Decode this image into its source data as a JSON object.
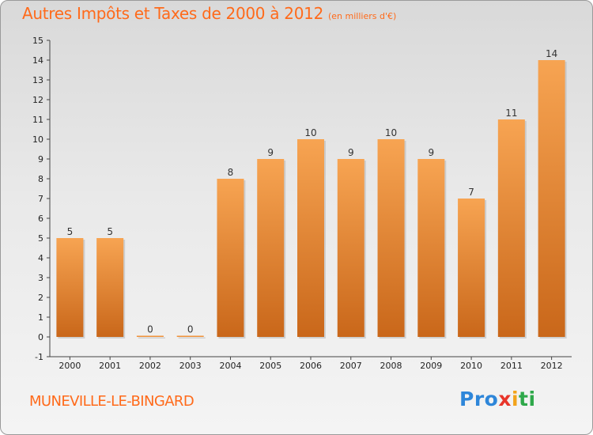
{
  "chart_data": {
    "type": "bar",
    "title": "Autres Impôts et Taxes de 2000 à 2012",
    "unit": "(en milliers d'€)",
    "categories": [
      "2000",
      "2001",
      "2002",
      "2003",
      "2004",
      "2005",
      "2006",
      "2007",
      "2008",
      "2009",
      "2010",
      "2011",
      "2012"
    ],
    "values": [
      5,
      5,
      0,
      0,
      8,
      9,
      10,
      9,
      10,
      9,
      7,
      11,
      14
    ],
    "ylim": [
      -1,
      15
    ],
    "yticks": [
      -1,
      0,
      1,
      2,
      3,
      4,
      5,
      6,
      7,
      8,
      9,
      10,
      11,
      12,
      13,
      14,
      15
    ],
    "grid": false,
    "bar_color": "#f0923a"
  },
  "commune": "MUNEVILLE-LE-BINGARD",
  "logo": {
    "p1": "Pro",
    "p2": "x",
    "p3": "i",
    "p4": "ti"
  }
}
